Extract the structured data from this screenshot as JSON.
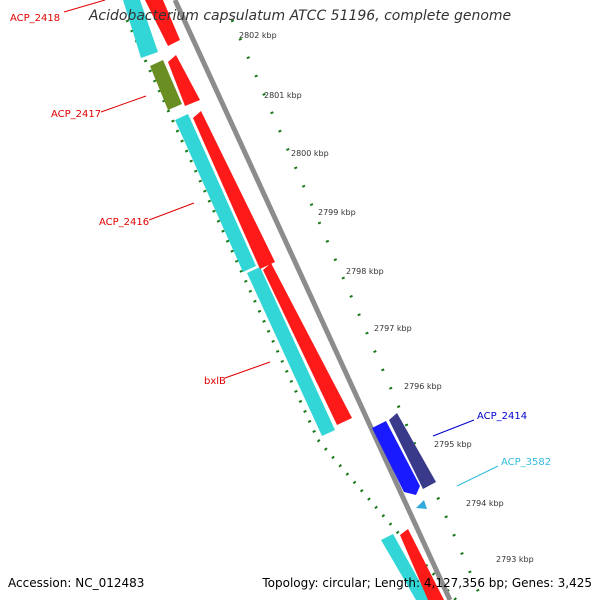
{
  "title": "Acidobacterium capsulatum ATCC 51196, complete genome",
  "footer": {
    "accession": "Accession: NC_012483",
    "topology": "Topology: circular; Length: 4,127,356 bp; Genes: 3,425"
  },
  "scale_labels": [
    "2802 kbp",
    "2801 kbp",
    "2800 kbp",
    "2799 kbp",
    "2798 kbp",
    "2797 kbp",
    "2796 kbp",
    "2795 kbp",
    "2794 kbp",
    "2793 kbp"
  ],
  "gene_labels": [
    {
      "text": "ACP_2418",
      "color": "#e00000"
    },
    {
      "text": "ACP_2417",
      "color": "#e00000"
    },
    {
      "text": "ACP_2416",
      "color": "#e00000"
    },
    {
      "text": "bxlB",
      "color": "#e00000"
    },
    {
      "text": "ACP_2414",
      "color": "#0000cc"
    },
    {
      "text": "ACP_3582",
      "color": "#33bbdd"
    }
  ],
  "colors": {
    "cyan": "#33d6d6",
    "red": "#ff1a1a",
    "olive": "#6b8e23",
    "blue": "#1a1aff",
    "navy": "#3a3a8a",
    "dash_green": "#1a7a1a",
    "backbone": "#8c8c8c"
  }
}
